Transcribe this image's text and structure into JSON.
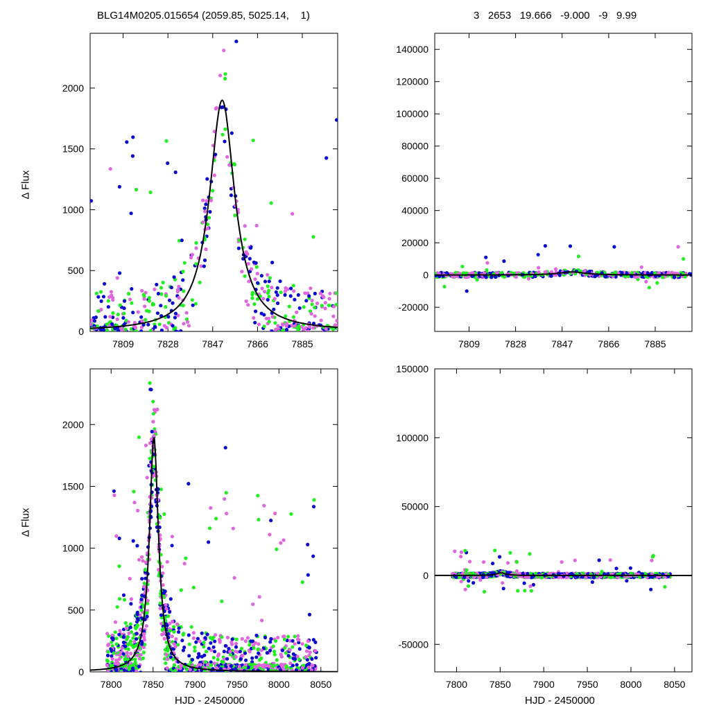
{
  "header": {
    "left": "BLG14M0205.015654 (2059.85, 5025.14,    1)",
    "right": "3   2653   19.666   -9.000   -9   9.99"
  },
  "labels": {
    "ylabel_top": "Δ Flux",
    "ylabel_bottom": "Δ Flux",
    "xlabel_left": "HJD - 2450000",
    "xlabel_right": "HJD - 2450000"
  },
  "colors": {
    "magenta": "#e066e0",
    "blue": "#0a0acf",
    "green": "#22ee22",
    "model": "#000000"
  },
  "chart_data": [
    {
      "id": "top-left",
      "type": "scatter",
      "xlim": [
        7795,
        7900
      ],
      "ylim": [
        0,
        2450
      ],
      "xticks": [
        7809,
        7828,
        7847,
        7866,
        7885
      ],
      "yticks": [
        0,
        500,
        1000,
        1500,
        2000
      ],
      "xlabel": "",
      "ylabel": "Δ Flux",
      "model": {
        "t0": 7851,
        "peak": 1900,
        "width": 6.5,
        "tail": 26
      }
    },
    {
      "id": "top-right",
      "type": "scatter",
      "xlim": [
        7795,
        7900
      ],
      "ylim": [
        -35000,
        150000
      ],
      "xticks": [
        7809,
        7828,
        7847,
        7866,
        7885
      ],
      "yticks": [
        -20000,
        0,
        20000,
        40000,
        60000,
        80000,
        100000,
        120000,
        140000
      ],
      "xlabel": "",
      "ylabel": "",
      "model": {
        "t0": 7851,
        "peak": 1900,
        "width": 6.5,
        "tail": 26
      }
    },
    {
      "id": "bottom-left",
      "type": "scatter",
      "xlim": [
        7775,
        8070
      ],
      "ylim": [
        0,
        2450
      ],
      "xticks": [
        7800,
        7850,
        7900,
        7950,
        8000,
        8050
      ],
      "yticks": [
        0,
        500,
        1000,
        1500,
        2000
      ],
      "xlabel": "HJD - 2450000",
      "ylabel": "Δ Flux",
      "model": {
        "t0": 7851,
        "peak": 1900,
        "width": 6.5,
        "tail": 26
      }
    },
    {
      "id": "bottom-right",
      "type": "scatter",
      "xlim": [
        7775,
        8070
      ],
      "ylim": [
        -70000,
        150000
      ],
      "xticks": [
        7800,
        7850,
        7900,
        7950,
        8000,
        8050
      ],
      "yticks": [
        -50000,
        0,
        50000,
        100000,
        150000
      ],
      "xlabel": "HJD - 2450000",
      "ylabel": "",
      "model": {
        "t0": 7851,
        "peak": 1900,
        "width": 6.5,
        "tail": 26
      }
    }
  ]
}
